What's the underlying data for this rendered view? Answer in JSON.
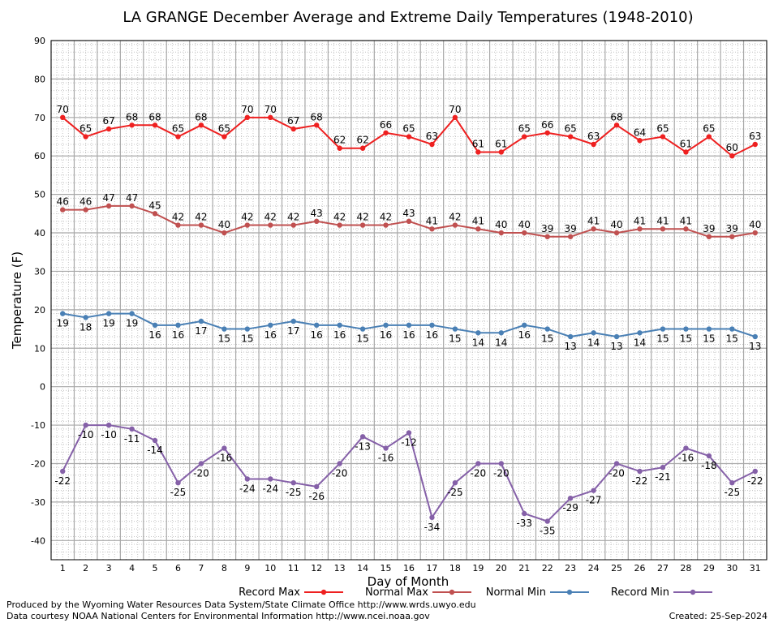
{
  "chart_data": {
    "type": "line",
    "title": "LA GRANGE December Average and Extreme Daily Temperatures (1948-2010)",
    "xlabel": "Day of Month",
    "ylabel": "Temperature (F)",
    "xlim": [
      0.5,
      31.5
    ],
    "ylim": [
      -45,
      90
    ],
    "yticks": [
      -40,
      -30,
      -20,
      -10,
      0,
      10,
      20,
      30,
      40,
      50,
      60,
      70,
      80,
      90
    ],
    "x": [
      1,
      2,
      3,
      4,
      5,
      6,
      7,
      8,
      9,
      10,
      11,
      12,
      13,
      14,
      15,
      16,
      17,
      18,
      19,
      20,
      21,
      22,
      23,
      24,
      25,
      26,
      27,
      28,
      29,
      30,
      31
    ],
    "grid": true,
    "legend_position": "bottom",
    "series": [
      {
        "name": "Record Max",
        "color": "#ee2020",
        "label_position": "above",
        "values": [
          70,
          65,
          67,
          68,
          68,
          65,
          68,
          65,
          70,
          70,
          67,
          68,
          62,
          62,
          66,
          65,
          63,
          70,
          61,
          61,
          65,
          66,
          65,
          63,
          68,
          64,
          65,
          61,
          65,
          60,
          63
        ]
      },
      {
        "name": "Normal Max",
        "color": "#c05050",
        "label_position": "above",
        "values": [
          46,
          46,
          47,
          47,
          45,
          42,
          42,
          40,
          42,
          42,
          42,
          43,
          42,
          42,
          42,
          43,
          41,
          42,
          41,
          40,
          40,
          39,
          39,
          41,
          40,
          41,
          41,
          41,
          39,
          39,
          40
        ]
      },
      {
        "name": "Normal Min",
        "color": "#4a80b5",
        "label_position": "below",
        "values": [
          19,
          18,
          19,
          19,
          16,
          16,
          17,
          15,
          15,
          16,
          17,
          16,
          16,
          15,
          16,
          16,
          16,
          15,
          14,
          14,
          16,
          15,
          13,
          14,
          13,
          14,
          15,
          15,
          15,
          15,
          13
        ]
      },
      {
        "name": "Record Min",
        "color": "#8560a8",
        "label_position": "below",
        "values": [
          -22,
          -10,
          -10,
          -11,
          -14,
          -25,
          -20,
          -16,
          -24,
          -24,
          -25,
          -26,
          -20,
          -13,
          -16,
          -12,
          -34,
          -25,
          -20,
          -20,
          -33,
          -35,
          -29,
          -27,
          -20,
          -22,
          -21,
          -16,
          -18,
          -25,
          -22
        ]
      }
    ]
  },
  "footer": {
    "produced_by": "Produced by the Wyoming Water Resources Data System/State Climate Office http://www.wrds.uwyo.edu",
    "data_courtesy": "Data courtesy NOAA National Centers for Environmental Information http://www.ncei.noaa.gov",
    "created": "Created: 25-Sep-2024"
  }
}
